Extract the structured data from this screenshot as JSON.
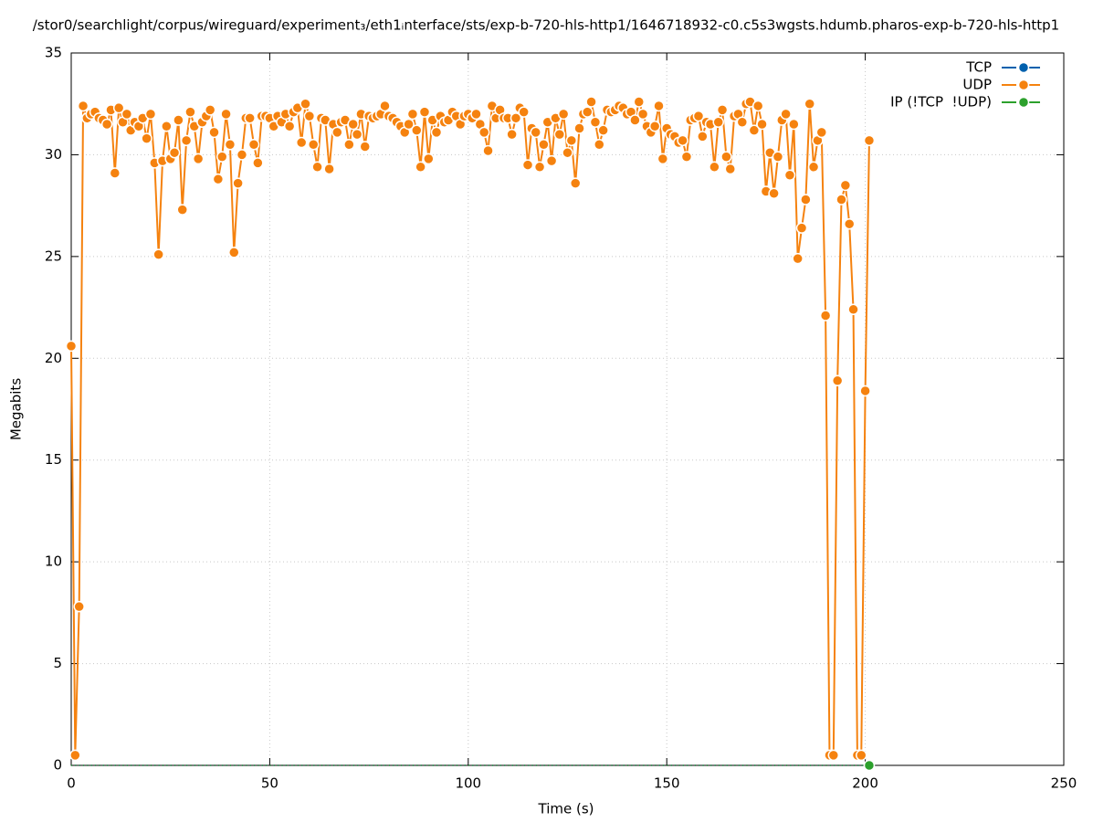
{
  "chart_data": {
    "type": "line",
    "title": "/stor0/searchlight/corpus/wireguard/experiment₃/eth1ᵢnterface/sts/exp-b-720-hls-http1/1646718932-c0.c5s3wgsts.hdumb.pharos-exp-b-720-hls-http1",
    "x_label": "Time (s)",
    "y_label": "Megabits",
    "xlim": [
      0,
      250
    ],
    "xticks": [
      0,
      50,
      100,
      150,
      200,
      250
    ],
    "ylim": [
      0,
      35
    ],
    "yticks": [
      0,
      5,
      10,
      15,
      20,
      25,
      30,
      35
    ],
    "grid": true,
    "legend": "top-right",
    "x": [
      0,
      1,
      2,
      3,
      4,
      5,
      6,
      7,
      8,
      9,
      10,
      11,
      12,
      13,
      14,
      15,
      16,
      17,
      18,
      19,
      20,
      21,
      22,
      23,
      24,
      25,
      26,
      27,
      28,
      29,
      30,
      31,
      32,
      33,
      34,
      35,
      36,
      37,
      38,
      39,
      40,
      41,
      42,
      43,
      44,
      45,
      46,
      47,
      48,
      49,
      50,
      51,
      52,
      53,
      54,
      55,
      56,
      57,
      58,
      59,
      60,
      61,
      62,
      63,
      64,
      65,
      66,
      67,
      68,
      69,
      70,
      71,
      72,
      73,
      74,
      75,
      76,
      77,
      78,
      79,
      80,
      81,
      82,
      83,
      84,
      85,
      86,
      87,
      88,
      89,
      90,
      91,
      92,
      93,
      94,
      95,
      96,
      97,
      98,
      99,
      100,
      101,
      102,
      103,
      104,
      105,
      106,
      107,
      108,
      109,
      110,
      111,
      112,
      113,
      114,
      115,
      116,
      117,
      118,
      119,
      120,
      121,
      122,
      123,
      124,
      125,
      126,
      127,
      128,
      129,
      130,
      131,
      132,
      133,
      134,
      135,
      136,
      137,
      138,
      139,
      140,
      141,
      142,
      143,
      144,
      145,
      146,
      147,
      148,
      149,
      150,
      151,
      152,
      153,
      154,
      155,
      156,
      157,
      158,
      159,
      160,
      161,
      162,
      163,
      164,
      165,
      166,
      167,
      168,
      169,
      170,
      171,
      172,
      173,
      174,
      175,
      176,
      177,
      178,
      179,
      180,
      181,
      182,
      183,
      184,
      185,
      186,
      187,
      188,
      189,
      190,
      191,
      192,
      193,
      194,
      195,
      196,
      197,
      198,
      199,
      200,
      201
    ],
    "series": [
      {
        "name": "TCP",
        "color": "#0060ad",
        "values": [
          0,
          0,
          0,
          0,
          0,
          0,
          0,
          0,
          0,
          0,
          0,
          0,
          0,
          0,
          0,
          0,
          0,
          0,
          0,
          0,
          0,
          0,
          0,
          0,
          0,
          0,
          0,
          0,
          0,
          0,
          0,
          0,
          0,
          0,
          0,
          0,
          0,
          0,
          0,
          0,
          0,
          0,
          0,
          0,
          0,
          0,
          0,
          0,
          0,
          0,
          0,
          0,
          0,
          0,
          0,
          0,
          0,
          0,
          0,
          0,
          0,
          0,
          0,
          0,
          0,
          0,
          0,
          0,
          0,
          0,
          0,
          0,
          0,
          0,
          0,
          0,
          0,
          0,
          0,
          0,
          0,
          0,
          0,
          0,
          0,
          0,
          0,
          0,
          0,
          0,
          0,
          0,
          0,
          0,
          0,
          0,
          0,
          0,
          0,
          0,
          0,
          0,
          0,
          0,
          0,
          0,
          0,
          0,
          0,
          0,
          0,
          0,
          0,
          0,
          0,
          0,
          0,
          0,
          0,
          0,
          0,
          0,
          0,
          0,
          0,
          0,
          0,
          0,
          0,
          0,
          0,
          0,
          0,
          0,
          0,
          0,
          0,
          0,
          0,
          0,
          0,
          0,
          0,
          0,
          0,
          0,
          0,
          0,
          0,
          0,
          0,
          0,
          0,
          0,
          0,
          0,
          0,
          0,
          0,
          0,
          0,
          0,
          0,
          0,
          0,
          0,
          0,
          0,
          0,
          0,
          0,
          0,
          0,
          0,
          0,
          0,
          0,
          0,
          0,
          0,
          0,
          0,
          0,
          0,
          0,
          0,
          0,
          0,
          0,
          0,
          0,
          0,
          0,
          0,
          0,
          0,
          0,
          0,
          0,
          0,
          0,
          0
        ]
      },
      {
        "name": "UDP",
        "color": "#f5820f",
        "values": [
          20.6,
          0.5,
          7.8,
          32.4,
          31.8,
          32.0,
          32.1,
          31.8,
          31.7,
          31.5,
          32.2,
          29.1,
          32.3,
          31.6,
          32.0,
          31.2,
          31.6,
          31.4,
          31.8,
          30.8,
          32.0,
          29.6,
          25.1,
          29.7,
          31.4,
          29.8,
          30.1,
          31.7,
          27.3,
          30.7,
          32.1,
          31.4,
          29.8,
          31.6,
          31.9,
          32.2,
          31.1,
          28.8,
          29.9,
          32.0,
          30.5,
          25.2,
          28.6,
          30.0,
          31.8,
          31.8,
          30.5,
          29.6,
          31.9,
          31.9,
          31.8,
          31.4,
          31.9,
          31.6,
          32.0,
          31.4,
          32.1,
          32.3,
          30.6,
          32.5,
          31.9,
          30.5,
          29.4,
          31.8,
          31.7,
          29.3,
          31.5,
          31.1,
          31.6,
          31.7,
          30.5,
          31.5,
          31.0,
          32.0,
          30.4,
          31.9,
          31.8,
          31.9,
          32.0,
          32.4,
          31.9,
          31.8,
          31.6,
          31.4,
          31.1,
          31.5,
          32.0,
          31.2,
          29.4,
          32.1,
          29.8,
          31.7,
          31.1,
          31.9,
          31.6,
          31.7,
          32.1,
          31.9,
          31.5,
          31.9,
          32.0,
          31.8,
          32.0,
          31.5,
          31.1,
          30.2,
          32.4,
          31.8,
          32.2,
          31.8,
          31.8,
          31.0,
          31.8,
          32.3,
          32.1,
          29.5,
          31.3,
          31.1,
          29.4,
          30.5,
          31.6,
          29.7,
          31.8,
          31.0,
          32.0,
          30.1,
          30.7,
          28.6,
          31.3,
          32.0,
          32.1,
          32.6,
          31.6,
          30.5,
          31.2,
          32.2,
          32.1,
          32.2,
          32.4,
          32.3,
          32.0,
          32.1,
          31.7,
          32.6,
          32.0,
          31.4,
          31.1,
          31.4,
          32.4,
          29.8,
          31.3,
          31.0,
          30.9,
          30.6,
          30.7,
          29.9,
          31.7,
          31.8,
          31.9,
          30.9,
          31.6,
          31.5,
          29.4,
          31.6,
          32.2,
          29.9,
          29.3,
          31.9,
          32.0,
          31.6,
          32.5,
          32.6,
          31.2,
          32.4,
          31.5,
          28.2,
          30.1,
          28.1,
          29.9,
          31.7,
          32.0,
          29.0,
          31.5,
          24.9,
          26.4,
          27.8,
          32.5,
          29.4,
          30.7,
          31.1,
          22.1,
          0.5,
          0.5,
          18.9,
          27.8,
          28.5,
          26.6,
          22.4,
          0.5,
          0.5,
          18.4,
          30.7
        ]
      },
      {
        "name": "IP (!TCP  !UDP)",
        "color": "#2ca02c",
        "values": [
          0,
          0,
          0,
          0,
          0,
          0,
          0,
          0,
          0,
          0,
          0,
          0,
          0,
          0,
          0,
          0,
          0,
          0,
          0,
          0,
          0,
          0,
          0,
          0,
          0,
          0,
          0,
          0,
          0,
          0,
          0,
          0,
          0,
          0,
          0,
          0,
          0,
          0,
          0,
          0,
          0,
          0,
          0,
          0,
          0,
          0,
          0,
          0,
          0,
          0,
          0,
          0,
          0,
          0,
          0,
          0,
          0,
          0,
          0,
          0,
          0,
          0,
          0,
          0,
          0,
          0,
          0,
          0,
          0,
          0,
          0,
          0,
          0,
          0,
          0,
          0,
          0,
          0,
          0,
          0,
          0,
          0,
          0,
          0,
          0,
          0,
          0,
          0,
          0,
          0,
          0,
          0,
          0,
          0,
          0,
          0,
          0,
          0,
          0,
          0,
          0,
          0,
          0,
          0,
          0,
          0,
          0,
          0,
          0,
          0,
          0,
          0,
          0,
          0,
          0,
          0,
          0,
          0,
          0,
          0,
          0,
          0,
          0,
          0,
          0,
          0,
          0,
          0,
          0,
          0,
          0,
          0,
          0,
          0,
          0,
          0,
          0,
          0,
          0,
          0,
          0,
          0,
          0,
          0,
          0,
          0,
          0,
          0,
          0,
          0,
          0,
          0,
          0,
          0,
          0,
          0,
          0,
          0,
          0,
          0,
          0,
          0,
          0,
          0,
          0,
          0,
          0,
          0,
          0,
          0,
          0,
          0,
          0,
          0,
          0,
          0,
          0,
          0,
          0,
          0,
          0,
          0,
          0,
          0,
          0,
          0,
          0,
          0,
          0,
          0,
          0,
          0,
          0,
          0,
          0,
          0,
          0,
          0,
          0,
          0,
          0,
          0
        ]
      }
    ]
  }
}
